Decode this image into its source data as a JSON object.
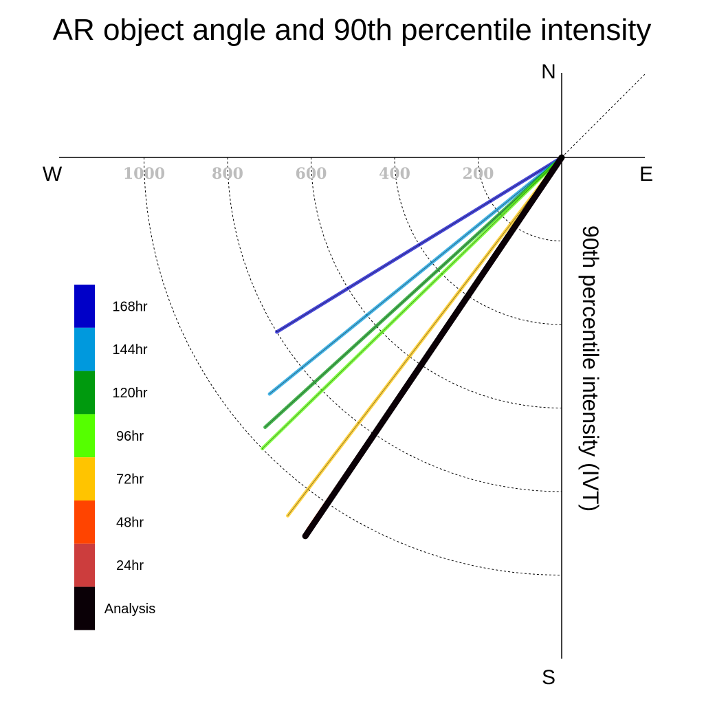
{
  "chart_data": {
    "type": "polar-vector",
    "title": "AR object angle and 90th percentile intensity",
    "ylabel": "90th percentile intensity (IVT)",
    "compass": {
      "north": "N",
      "south": "S",
      "east": "E",
      "west": "W"
    },
    "radial_ticks": [
      200,
      400,
      600,
      800,
      1000
    ],
    "radial_tick_labels": [
      "200",
      "400",
      "600",
      "800",
      "1000"
    ],
    "grid": true,
    "legend_position": "left",
    "series": [
      {
        "name": "168hr",
        "color": "#0000c8",
        "angle_deg": 31.5,
        "magnitude": 800
      },
      {
        "name": "144hr",
        "color": "#0099dd",
        "angle_deg": 39.0,
        "magnitude": 900
      },
      {
        "name": "120hr",
        "color": "#009a0e",
        "angle_deg": 42.3,
        "magnitude": 960
      },
      {
        "name": "96hr",
        "color": "#55ff00",
        "angle_deg": 44.2,
        "magnitude": 1000
      },
      {
        "name": "72hr",
        "color": "#ffc400",
        "angle_deg": 52.6,
        "magnitude": 1080
      },
      {
        "name": "48hr",
        "color": "#ff4400",
        "angle_deg": 55.7,
        "magnitude": 1080
      },
      {
        "name": "24hr",
        "color": "#cc3d3d",
        "angle_deg": 55.8,
        "magnitude": 1070
      },
      {
        "name": "Analysis",
        "color": "#0a0006",
        "angle_deg": 55.9,
        "magnitude": 1095
      }
    ]
  }
}
